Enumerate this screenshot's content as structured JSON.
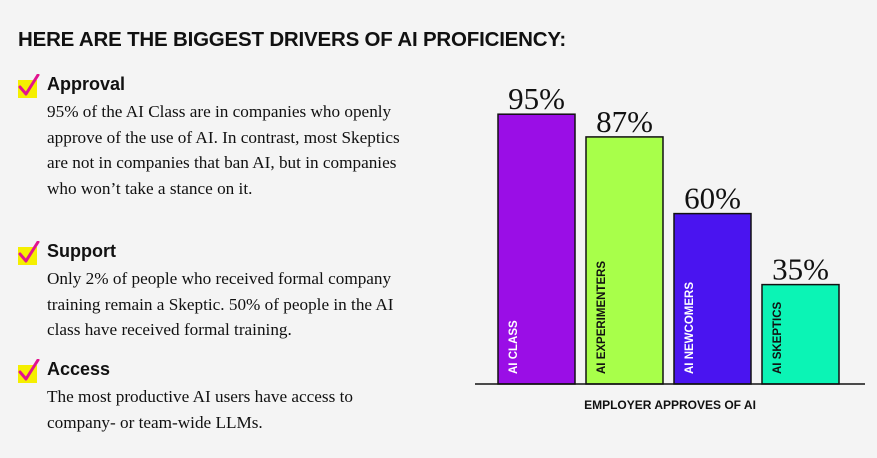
{
  "headline": "HERE ARE THE BIGGEST DRIVERS OF AI PROFICIENCY:",
  "drivers": [
    {
      "icon": "checkmark-icon",
      "title": "Approval",
      "body": "95% of the AI Class are in companies who openly approve of the use of AI. In contrast, most Skeptics are not in companies that ban AI, but in companies who won’t take a stance on it."
    },
    {
      "icon": "checkmark-icon",
      "title": "Support",
      "body": "Only 2% of people who received formal company training remain a Skeptic. 50% of people in the AI class have received formal training."
    },
    {
      "icon": "checkmark-icon",
      "title": "Access",
      "body": "The most productive AI users have access to company- or team-wide LLMs."
    }
  ],
  "colors": {
    "check_highlight": "#f5ef00",
    "check_mark": "#e2138f",
    "ai_class": "#9a0ee6",
    "ai_experimenters": "#a8ff4a",
    "ai_newcomers": "#4a14f0",
    "ai_skeptics": "#0bf4b5"
  },
  "chart_data": {
    "type": "bar",
    "title": "",
    "xlabel": "EMPLOYER APPROVES OF AI",
    "ylabel": "",
    "categories": [
      "AI CLASS",
      "AI EXPERIMENTERS",
      "AI NEWCOMERS",
      "AI SKEPTICS"
    ],
    "values": [
      95,
      87,
      60,
      35
    ],
    "value_labels": [
      "95%",
      "87%",
      "60%",
      "35%"
    ],
    "ylim": [
      0,
      100
    ],
    "grid": false,
    "legend": "none",
    "bar_colors": [
      "#9a0ee6",
      "#a8ff4a",
      "#4a14f0",
      "#0bf4b5"
    ]
  }
}
